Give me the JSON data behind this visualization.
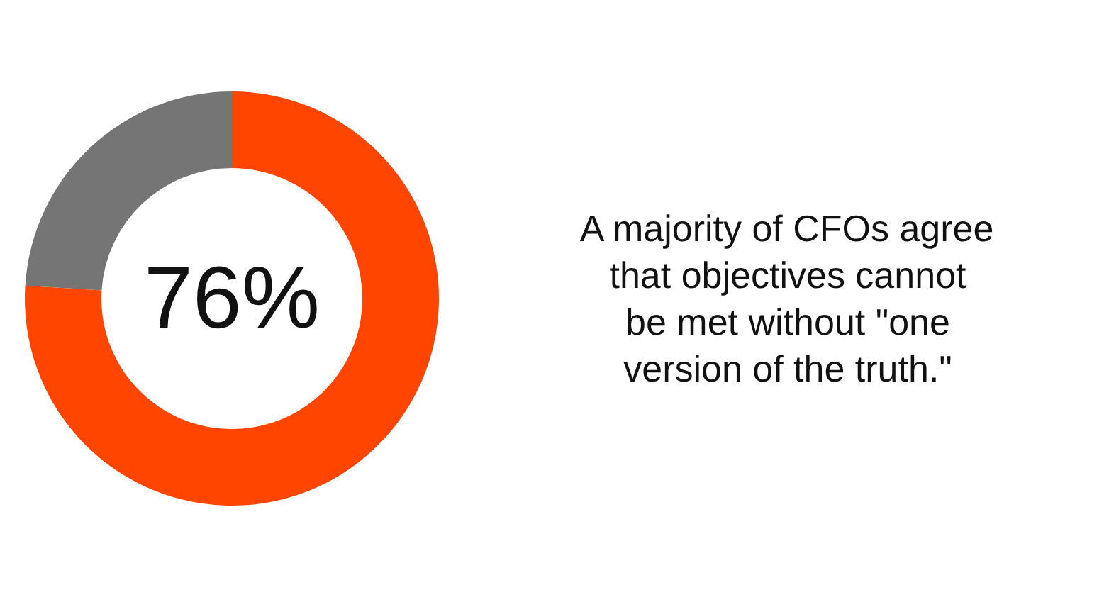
{
  "chart_data": {
    "type": "donut",
    "categories": [
      null,
      null
    ],
    "values": [
      76,
      24
    ],
    "colors": [
      "#ff4500",
      "#757575"
    ],
    "annotations": [
      "76%",
      "A majority of CFOs agree that objectives cannot be met without \"one version of the truth.\""
    ]
  }
}
